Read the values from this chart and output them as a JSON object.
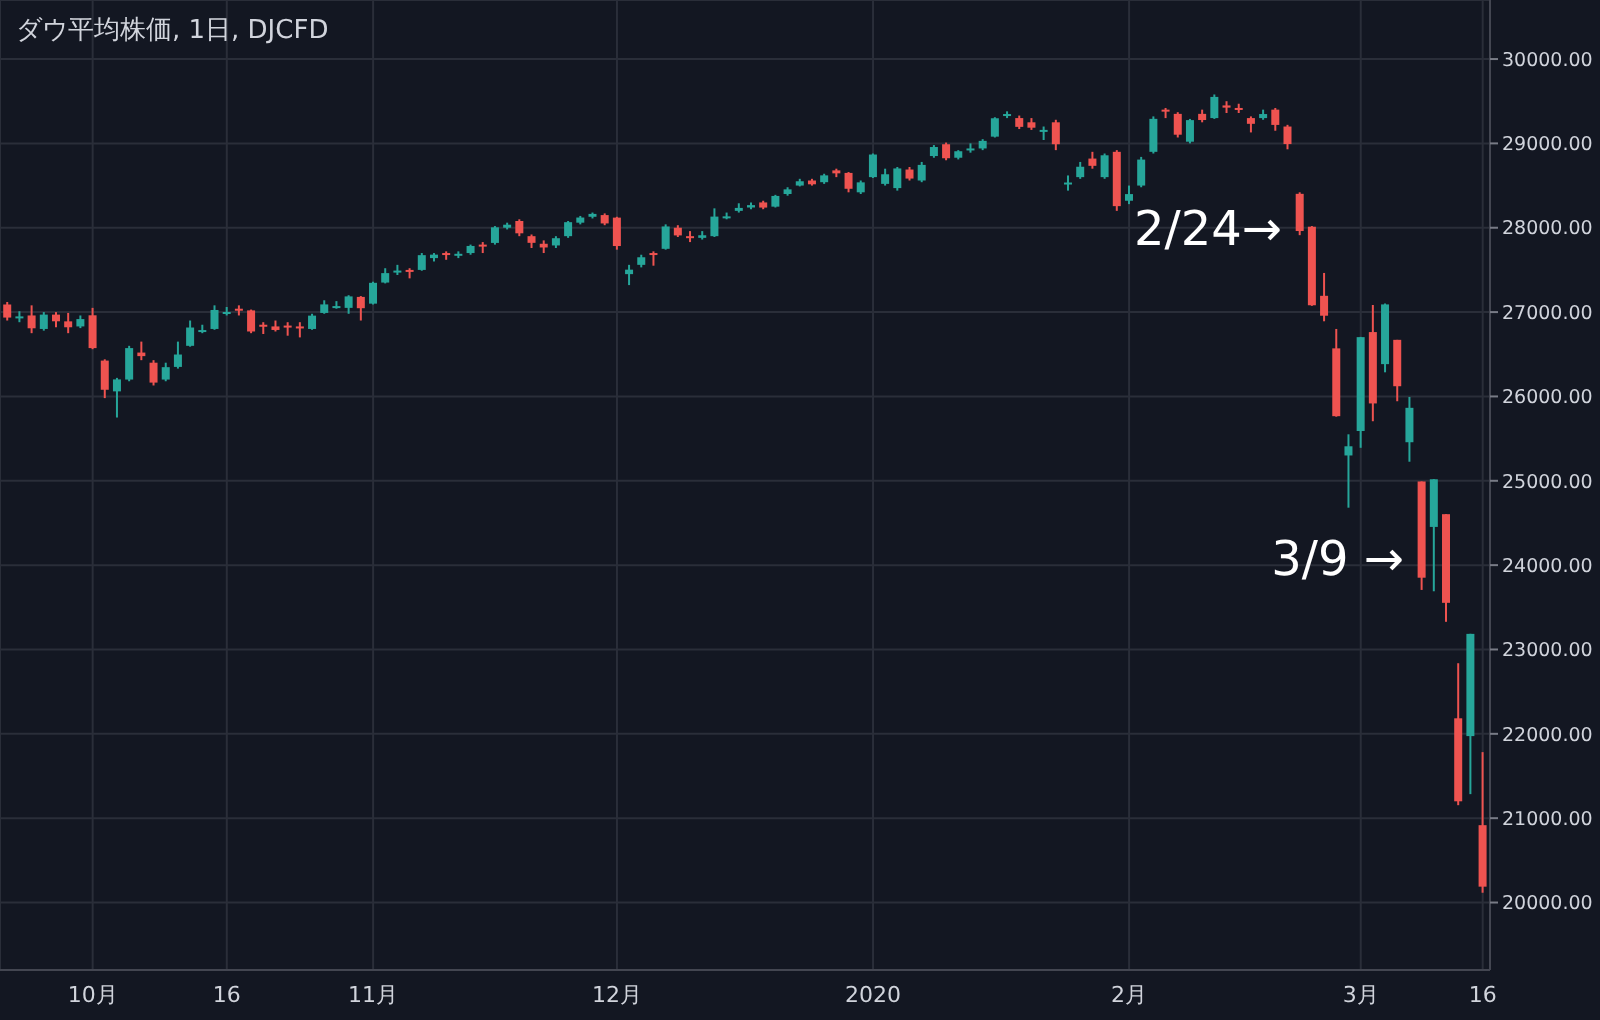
{
  "chart_data": {
    "type": "candlestick",
    "title": "ダウ平均株価, 1日, DJCFD",
    "categories": [
      null,
      null,
      null,
      null,
      null,
      null,
      null,
      "10月",
      null,
      null,
      null,
      null,
      null,
      null,
      null,
      null,
      null,
      null,
      "16",
      null,
      null,
      null,
      null,
      null,
      null,
      null,
      null,
      null,
      null,
      null,
      "11月",
      null,
      null,
      null,
      null,
      null,
      null,
      null,
      null,
      null,
      null,
      null,
      null,
      null,
      null,
      null,
      null,
      null,
      null,
      null,
      "12月",
      null,
      null,
      null,
      null,
      null,
      null,
      null,
      null,
      null,
      null,
      null,
      null,
      null,
      null,
      null,
      null,
      null,
      null,
      null,
      null,
      "2020",
      null,
      null,
      null,
      null,
      null,
      null,
      null,
      null,
      null,
      null,
      null,
      null,
      null,
      null,
      null,
      null,
      null,
      null,
      null,
      null,
      "2月",
      null,
      null,
      null,
      null,
      null,
      null,
      null,
      null,
      null,
      null,
      null,
      null,
      null,
      null,
      null,
      null,
      null,
      null,
      "3月",
      null,
      null,
      null,
      null,
      null,
      null,
      null,
      null,
      null,
      "16"
    ],
    "ohlc": [
      [
        27090,
        27120,
        26900,
        26935
      ],
      [
        26935,
        27010,
        26880,
        26949
      ],
      [
        26960,
        27080,
        26750,
        26808
      ],
      [
        26800,
        27000,
        26780,
        26970
      ],
      [
        26970,
        27000,
        26820,
        26891
      ],
      [
        26890,
        26990,
        26750,
        26820
      ],
      [
        26830,
        26960,
        26810,
        26917
      ],
      [
        26962,
        27050,
        26560,
        26573
      ],
      [
        26425,
        26440,
        25980,
        26079
      ],
      [
        26060,
        26220,
        25750,
        26202
      ],
      [
        26200,
        26600,
        26180,
        26573
      ],
      [
        26520,
        26650,
        26430,
        26478
      ],
      [
        26400,
        26430,
        26130,
        26164
      ],
      [
        26200,
        26400,
        26180,
        26347
      ],
      [
        26350,
        26650,
        26330,
        26497
      ],
      [
        26600,
        26900,
        26590,
        26817
      ],
      [
        26780,
        26850,
        26750,
        26787
      ],
      [
        26800,
        27080,
        26790,
        27025
      ],
      [
        26990,
        27060,
        26960,
        27001
      ],
      [
        27040,
        27080,
        26960,
        27026
      ],
      [
        27020,
        27030,
        26750,
        26770
      ],
      [
        26850,
        26880,
        26740,
        26827
      ],
      [
        26830,
        26900,
        26770,
        26788
      ],
      [
        26840,
        26880,
        26720,
        26834
      ],
      [
        26830,
        26880,
        26700,
        26806
      ],
      [
        26800,
        26980,
        26790,
        26958
      ],
      [
        26990,
        27140,
        26980,
        27091
      ],
      [
        27060,
        27130,
        27040,
        27071
      ],
      [
        27050,
        27200,
        26980,
        27186
      ],
      [
        27180,
        27190,
        26900,
        27046
      ],
      [
        27100,
        27360,
        27090,
        27347
      ],
      [
        27350,
        27520,
        27340,
        27462
      ],
      [
        27480,
        27560,
        27440,
        27492
      ],
      [
        27500,
        27520,
        27400,
        27493
      ],
      [
        27500,
        27700,
        27490,
        27675
      ],
      [
        27640,
        27700,
        27600,
        27681
      ],
      [
        27700,
        27720,
        27620,
        27691
      ],
      [
        27680,
        27720,
        27640,
        27691
      ],
      [
        27700,
        27800,
        27680,
        27784
      ],
      [
        27800,
        27830,
        27700,
        27782
      ],
      [
        27820,
        28020,
        27800,
        28005
      ],
      [
        28000,
        28060,
        27980,
        28036
      ],
      [
        28080,
        28100,
        27900,
        27934
      ],
      [
        27900,
        27920,
        27760,
        27821
      ],
      [
        27810,
        27850,
        27700,
        27766
      ],
      [
        27790,
        27900,
        27760,
        27876
      ],
      [
        27900,
        28080,
        27880,
        28066
      ],
      [
        28060,
        28140,
        28040,
        28121
      ],
      [
        28130,
        28180,
        28110,
        28164
      ],
      [
        28150,
        28170,
        28030,
        28051
      ],
      [
        28120,
        28130,
        27740,
        27783
      ],
      [
        27450,
        27560,
        27320,
        27503
      ],
      [
        27560,
        27680,
        27530,
        27650
      ],
      [
        27700,
        27720,
        27550,
        27677
      ],
      [
        27750,
        28040,
        27740,
        28015
      ],
      [
        28000,
        28030,
        27890,
        27909
      ],
      [
        27900,
        27960,
        27830,
        27881
      ],
      [
        27880,
        27960,
        27860,
        27911
      ],
      [
        27900,
        28230,
        27890,
        28132
      ],
      [
        28120,
        28180,
        28100,
        28135
      ],
      [
        28200,
        28290,
        28180,
        28235
      ],
      [
        28240,
        28300,
        28220,
        28268
      ],
      [
        28300,
        28320,
        28220,
        28239
      ],
      [
        28250,
        28390,
        28240,
        28377
      ],
      [
        28400,
        28480,
        28380,
        28455
      ],
      [
        28500,
        28580,
        28490,
        28551
      ],
      [
        28560,
        28580,
        28500,
        28515
      ],
      [
        28540,
        28640,
        28520,
        28621
      ],
      [
        28680,
        28700,
        28600,
        28645
      ],
      [
        28650,
        28660,
        28420,
        28462
      ],
      [
        28420,
        28560,
        28400,
        28538
      ],
      [
        28600,
        28880,
        28590,
        28868
      ],
      [
        28520,
        28700,
        28500,
        28634
      ],
      [
        28470,
        28720,
        28440,
        28703
      ],
      [
        28690,
        28720,
        28560,
        28583
      ],
      [
        28560,
        28780,
        28540,
        28745
      ],
      [
        28850,
        28980,
        28830,
        28957
      ],
      [
        28990,
        29010,
        28800,
        28824
      ],
      [
        28830,
        28920,
        28810,
        28907
      ],
      [
        28920,
        29000,
        28890,
        28940
      ],
      [
        28940,
        29050,
        28920,
        29030
      ],
      [
        29080,
        29310,
        29070,
        29298
      ],
      [
        29330,
        29380,
        29300,
        29348
      ],
      [
        29300,
        29330,
        29170,
        29196
      ],
      [
        29250,
        29300,
        29160,
        29186
      ],
      [
        29150,
        29200,
        29040,
        29160
      ],
      [
        29250,
        29280,
        28920,
        28990
      ],
      [
        28530,
        28620,
        28440,
        28536
      ],
      [
        28600,
        28780,
        28580,
        28723
      ],
      [
        28820,
        28900,
        28700,
        28734
      ],
      [
        28600,
        28880,
        28580,
        28859
      ],
      [
        28900,
        28920,
        28200,
        28256
      ],
      [
        28320,
        28500,
        28280,
        28399
      ],
      [
        28500,
        28840,
        28480,
        28808
      ],
      [
        28900,
        29320,
        28880,
        29291
      ],
      [
        29400,
        29420,
        29300,
        29380
      ],
      [
        29350,
        29370,
        29070,
        29103
      ],
      [
        29020,
        29290,
        29000,
        29276
      ],
      [
        29350,
        29400,
        29250,
        29277
      ],
      [
        29300,
        29580,
        29290,
        29551
      ],
      [
        29450,
        29500,
        29360,
        29424
      ],
      [
        29420,
        29470,
        29360,
        29398
      ],
      [
        29300,
        29320,
        29130,
        29232
      ],
      [
        29300,
        29400,
        29280,
        29348
      ],
      [
        29400,
        29420,
        29150,
        29219
      ],
      [
        29200,
        29220,
        28930,
        28992
      ],
      [
        28402,
        28420,
        27912,
        27961
      ],
      [
        28012,
        28020,
        27074,
        27081
      ],
      [
        27193,
        27464,
        26891,
        26957
      ],
      [
        26570,
        26800,
        25760,
        25766
      ],
      [
        25300,
        25551,
        24681,
        25409
      ],
      [
        25590,
        26706,
        25391,
        26703
      ],
      [
        26763,
        27084,
        25706,
        25917
      ],
      [
        26383,
        27102,
        26286,
        27091
      ],
      [
        26671,
        26671,
        25943,
        26121
      ],
      [
        25457,
        25994,
        25226,
        25865
      ],
      [
        24992,
        24992,
        23706,
        23851
      ],
      [
        24453,
        25020,
        23690,
        25018
      ],
      [
        24604,
        24604,
        23328,
        23553
      ],
      [
        22184,
        22837,
        21154,
        21200
      ],
      [
        21973,
        23186,
        21285,
        23185
      ],
      [
        20917,
        21783,
        20116,
        20188
      ]
    ],
    "ylim": [
      19200,
      30700
    ],
    "yticks": [
      {
        "value": 20000,
        "label": "20000.00"
      },
      {
        "value": 21000,
        "label": "21000.00"
      },
      {
        "value": 22000,
        "label": "22000.00"
      },
      {
        "value": 23000,
        "label": "23000.00"
      },
      {
        "value": 24000,
        "label": "24000.00"
      },
      {
        "value": 25000,
        "label": "25000.00"
      },
      {
        "value": 26000,
        "label": "26000.00"
      },
      {
        "value": 27000,
        "label": "27000.00"
      },
      {
        "value": 28000,
        "label": "28000.00"
      },
      {
        "value": 29000,
        "label": "29000.00"
      },
      {
        "value": 30000,
        "label": "30000.00"
      }
    ],
    "grid": true,
    "annotations": [
      "2/24→",
      "3/9 →"
    ]
  }
}
